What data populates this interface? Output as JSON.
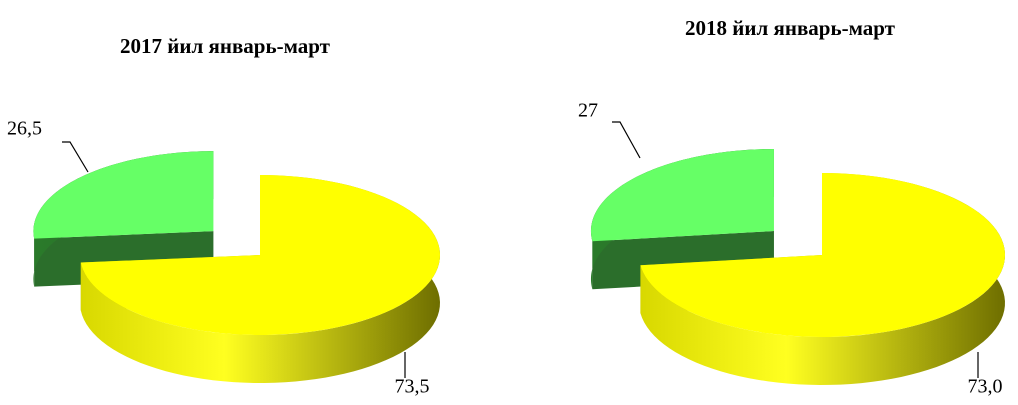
{
  "chart_data": [
    {
      "type": "pie",
      "title": "2017 йил  январь-март",
      "values": [
        73.5,
        26.5
      ],
      "value_labels": [
        "73,5",
        "26,5"
      ],
      "colors": [
        "#ffff00",
        "#66ff66"
      ]
    },
    {
      "type": "pie",
      "title": "2018 йил январь-март",
      "values": [
        73,
        27
      ],
      "value_labels": [
        "73,0",
        "27"
      ],
      "colors": [
        "#ffff00",
        "#66ff66"
      ]
    }
  ]
}
